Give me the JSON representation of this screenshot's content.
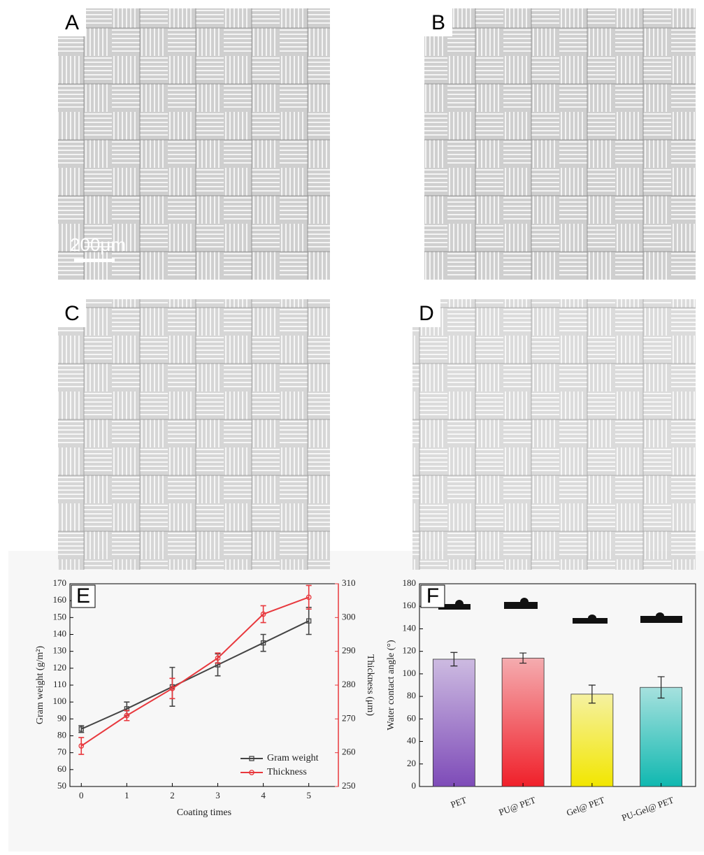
{
  "panels": [
    {
      "label": "A",
      "scale_bar": "200μm"
    },
    {
      "label": "B"
    },
    {
      "label": "C"
    },
    {
      "label": "D"
    }
  ],
  "chart_data": [
    {
      "type": "line",
      "label": "E",
      "xlabel": "Coating times",
      "ylabel": "Gram weight (g/m²)",
      "y2label": "Thickness (μm)",
      "x": [
        0,
        1,
        2,
        3,
        4,
        5
      ],
      "xlim": [
        -0.25,
        5.65
      ],
      "xticks": [
        0,
        1,
        2,
        3,
        4,
        5
      ],
      "ylim": [
        50,
        170
      ],
      "yticks": [
        50,
        60,
        70,
        80,
        90,
        100,
        110,
        120,
        130,
        140,
        150,
        160,
        170
      ],
      "y2lim": [
        250,
        310
      ],
      "y2ticks": [
        250,
        260,
        270,
        280,
        290,
        300,
        310
      ],
      "legend": "lower right",
      "series": [
        {
          "name": "Gram weight",
          "color": "#444444",
          "marker": "square",
          "values": [
            84,
            96,
            109,
            122,
            135,
            148
          ],
          "errors": [
            2,
            4,
            11.5,
            6.5,
            5,
            8
          ]
        },
        {
          "name": "Thickness",
          "color": "#e8383d",
          "marker": "circle",
          "axis": "y2",
          "values": [
            262,
            271,
            279,
            288,
            301,
            306
          ],
          "errors": [
            2.5,
            1.5,
            3,
            1.5,
            2.5,
            3.5
          ]
        }
      ]
    },
    {
      "type": "bar",
      "label": "F",
      "ylabel": "Water contact angle (°)",
      "categories": [
        "PET",
        "PU@ PET",
        "Gel@ PET",
        "PU-Gel@ PET"
      ],
      "values": [
        113,
        114,
        82,
        88
      ],
      "errors": [
        6,
        4.5,
        8,
        9.5
      ],
      "colors": [
        "#7e4bb8",
        "#f0202a",
        "#f2e600",
        "#10b8b0"
      ],
      "ylim": [
        0,
        180
      ],
      "yticks": [
        0,
        20,
        40,
        60,
        80,
        100,
        120,
        140,
        160,
        180
      ]
    }
  ]
}
